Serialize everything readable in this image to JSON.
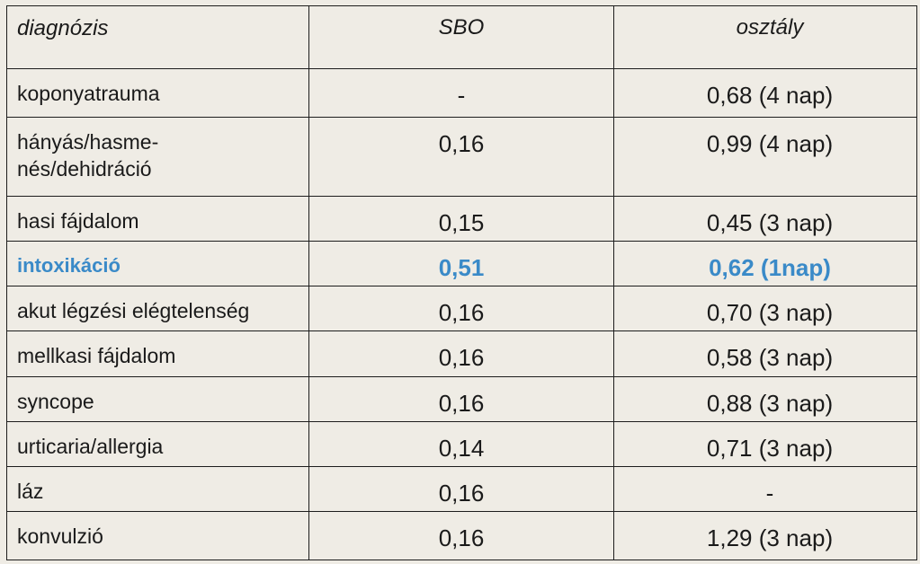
{
  "table": {
    "headers": [
      "diagnózis",
      "SBO",
      "osztály"
    ],
    "rows": [
      {
        "diagnosis": "koponyatrauma",
        "sbo": "-",
        "osztaly": "0,68 (4 nap)",
        "highlight": false
      },
      {
        "diagnosis_line1": "hányás/hasme-",
        "diagnosis_line2": "nés/dehidráció",
        "sbo": "0,16",
        "osztaly": "0,99 (4 nap)",
        "highlight": false
      },
      {
        "diagnosis": "hasi fájdalom",
        "sbo": "0,15",
        "osztaly": "0,45 (3 nap)",
        "highlight": false
      },
      {
        "diagnosis": "intoxikáció",
        "sbo": "0,51",
        "osztaly": "0,62 (1nap)",
        "highlight": true
      },
      {
        "diagnosis": "akut légzési elégtelenség",
        "sbo": "0,16",
        "osztaly": "0,70 (3 nap)",
        "highlight": false
      },
      {
        "diagnosis": "mellkasi fájdalom",
        "sbo": "0,16",
        "osztaly": "0,58 (3 nap)",
        "highlight": false
      },
      {
        "diagnosis": "syncope",
        "sbo": "0,16",
        "osztaly": "0,88 (3 nap)",
        "highlight": false
      },
      {
        "diagnosis": "urticaria/allergia",
        "sbo": "0,14",
        "osztaly": "0,71 (3 nap)",
        "highlight": false
      },
      {
        "diagnosis": "láz",
        "sbo": "0,16",
        "osztaly": "-",
        "highlight": false
      },
      {
        "diagnosis": "konvulzió",
        "sbo": "0,16",
        "osztaly": "1,29 (3 nap)",
        "highlight": false
      }
    ]
  },
  "colors": {
    "background": "#efece5",
    "border": "#1d1d1d",
    "text": "#1a1a1a",
    "highlight": "#3a8ac8"
  }
}
